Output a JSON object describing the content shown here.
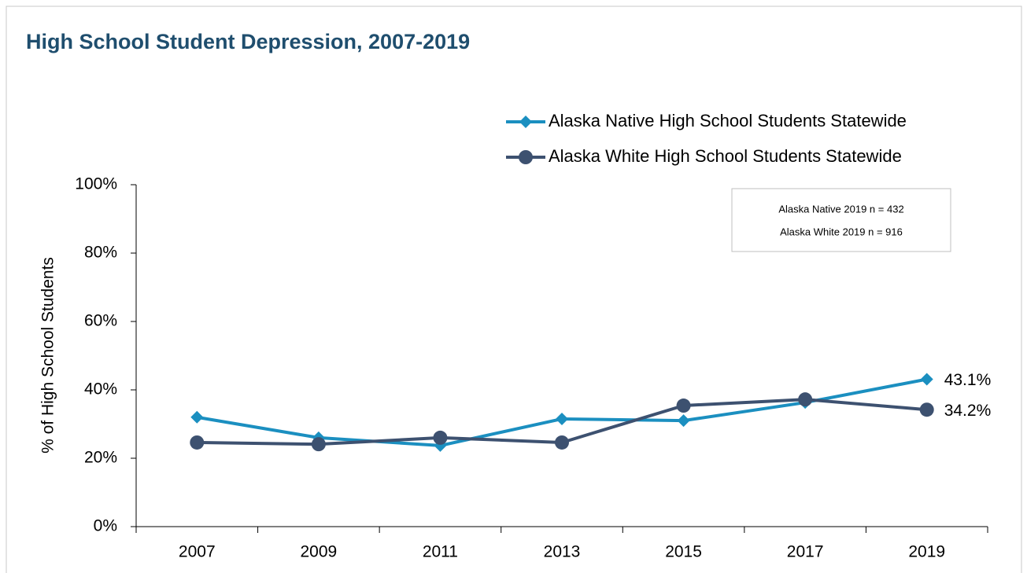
{
  "chart_data": {
    "type": "line",
    "title": "High School Student Depression, 2007-2019",
    "y_label": "% of High School Students",
    "annotations": [
      "Alaska Native 2019 n = 432",
      "Alaska White 2019 n = 916"
    ],
    "categories": [
      "2007",
      "2009",
      "2011",
      "2013",
      "2015",
      "2017",
      "2019"
    ],
    "series": [
      {
        "name": "Alaska Native High School Students Statewide",
        "color": "#1b8fc0",
        "marker": "diamond",
        "values": [
          32.0,
          26.0,
          23.7,
          31.5,
          31.0,
          36.3,
          43.1
        ],
        "value_labels": [
          null,
          null,
          null,
          null,
          null,
          null,
          "43.1%"
        ]
      },
      {
        "name": "Alaska White High School Students Statewide",
        "color": "#3d5170",
        "marker": "circle",
        "values": [
          24.6,
          24.1,
          26.0,
          24.6,
          35.4,
          37.2,
          34.2
        ],
        "value_labels": [
          null,
          null,
          null,
          null,
          null,
          null,
          "34.2%"
        ]
      }
    ],
    "ylim": [
      0,
      100
    ],
    "yticks": [
      {
        "value": 0,
        "label": "0%"
      },
      {
        "value": 20,
        "label": "20%"
      },
      {
        "value": 40,
        "label": "40%"
      },
      {
        "value": 60,
        "label": "60%"
      },
      {
        "value": 80,
        "label": "80%"
      },
      {
        "value": 100,
        "label": "100%"
      }
    ],
    "grid": false
  }
}
